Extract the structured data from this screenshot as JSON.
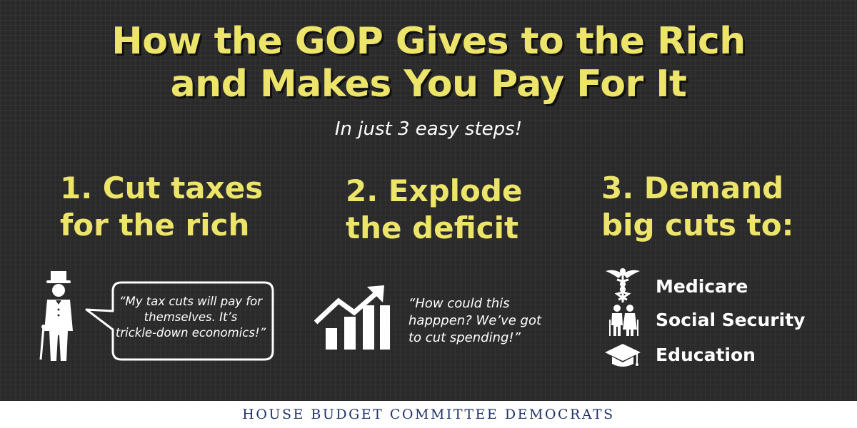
{
  "title": {
    "line1": "How the GOP Gives to the Rich",
    "line2": "and Makes You Pay For It"
  },
  "subtitle": "In just 3 easy steps!",
  "steps": [
    {
      "line1": "1. Cut taxes",
      "line2": "for the rich"
    },
    {
      "line1": "2. Explode",
      "line2": "the deficit"
    },
    {
      "line1": "3. Demand",
      "line2": "big cuts to:"
    }
  ],
  "quote1": {
    "line1": "“My tax cuts will pay for",
    "line2": "themselves. It’s",
    "line3": "trickle-down economics!”"
  },
  "quote2": {
    "line1": "“How could this",
    "line2": "happpen? We’ve got",
    "line3": "to cut spending!”"
  },
  "cuts": [
    {
      "label": "Medicare",
      "icon": "caduceus-icon"
    },
    {
      "label": "Social Security",
      "icon": "elderly-couple-icon"
    },
    {
      "label": "Education",
      "icon": "graduation-cap-icon"
    }
  ],
  "footer": "HOUSE BUDGET COMMITTEE DEMOCRATS",
  "colors": {
    "background": "#2a2a2a",
    "accent_yellow": "#ede46a",
    "footer_text": "#1e3366"
  }
}
